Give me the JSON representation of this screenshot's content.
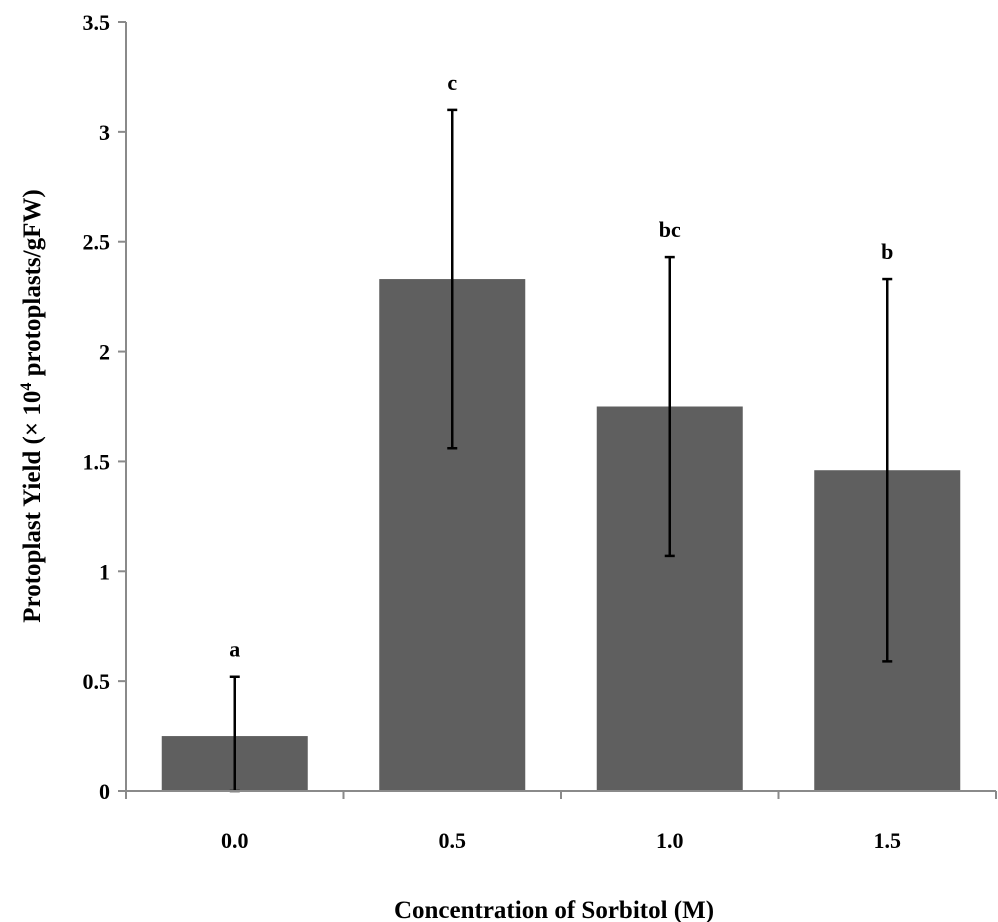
{
  "chart_data": {
    "type": "bar",
    "categories": [
      "0.0",
      "0.5",
      "1.0",
      "1.5"
    ],
    "values": [
      0.25,
      2.33,
      1.75,
      1.46
    ],
    "error_low": [
      0.0,
      1.56,
      1.07,
      0.59
    ],
    "error_high": [
      0.52,
      3.1,
      2.43,
      2.33
    ],
    "significance_labels": [
      "a",
      "c",
      "bc",
      "b"
    ],
    "xlabel": "Concentration of Sorbitol (M)",
    "ylabel_parts": {
      "pre": "Protoplast Yield (× 10",
      "sup": "4",
      "post": " protoplasts/gFW)"
    },
    "ylim": [
      0,
      3.5
    ],
    "yticks": [
      "0",
      "0.5",
      "1",
      "1.5",
      "2",
      "2.5",
      "3",
      "3.5"
    ],
    "bar_color": "#5f5f5f",
    "grid": false,
    "legend": "none"
  }
}
